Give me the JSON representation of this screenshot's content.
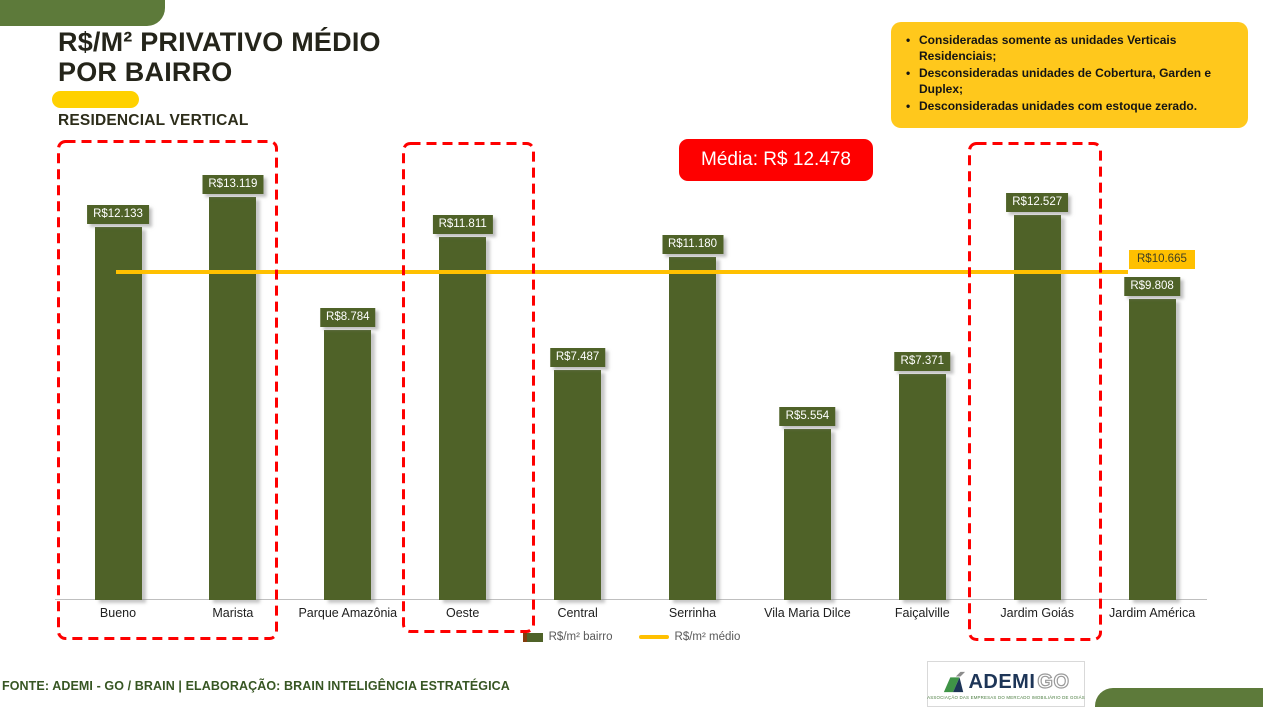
{
  "header": {
    "title_line1": "R$/M² PRIVATIVO MÉDIO",
    "title_line2": "POR BAIRRO",
    "subtitle": "RESIDENCIAL VERTICAL"
  },
  "notes": {
    "items": [
      "Consideradas somente as unidades Verticais Residenciais;",
      "Desconsideradas unidades de Cobertura, Garden e Duplex;",
      "Desconsideradas unidades com estoque zerado."
    ]
  },
  "average_badge": "Média: R$ 12.478",
  "chart_data": {
    "type": "bar",
    "title": "R$/M² Privativo Médio por Bairro — Residencial Vertical",
    "categories": [
      "Bueno",
      "Marista",
      "Parque Amazônia",
      "Oeste",
      "Central",
      "Serrinha",
      "Vila Maria Dilce",
      "Faiçalville",
      "Jardim Goiás",
      "Jardim América"
    ],
    "values": [
      12133,
      13119,
      8784,
      11811,
      7487,
      11180,
      5554,
      7371,
      12527,
      9808
    ],
    "value_labels": [
      "R$12.133",
      "R$13.119",
      "R$8.784",
      "R$11.811",
      "R$7.487",
      "R$11.180",
      "R$5.554",
      "R$7.371",
      "R$12.527",
      "R$9.808"
    ],
    "mean_line": {
      "value": 10665,
      "label": "R$10.665"
    },
    "average_overall": 12478,
    "highlighted_categories": [
      [
        "Bueno",
        "Marista"
      ],
      [
        "Oeste"
      ],
      [
        "Jardim Goiás"
      ]
    ],
    "legend": [
      {
        "label": "R$/m² bairro",
        "marker": "square"
      },
      {
        "label": "R$/m² médio",
        "marker": "line"
      }
    ],
    "ylim": [
      0,
      14000
    ],
    "grid": false,
    "legend_position": "bottom-center",
    "colors": {
      "bar": "#4f6228",
      "mean_line": "#FFC000",
      "highlight_border": "#FE0000",
      "value_label_bg": "#4f6228",
      "value_label_text": "#ffffff"
    }
  },
  "footer": {
    "source": "FONTE: ADEMI - GO / BRAIN  | ELABORAÇÃO: BRAIN INTELIGÊNCIA ESTRATÉGICA"
  },
  "logo": {
    "word": "ADEMI",
    "suffix": "GO",
    "tagline": "ASSOCIAÇÃO DAS EMPRESAS DO MERCADO IMOBILIÁRIO DE GOIÁS"
  }
}
